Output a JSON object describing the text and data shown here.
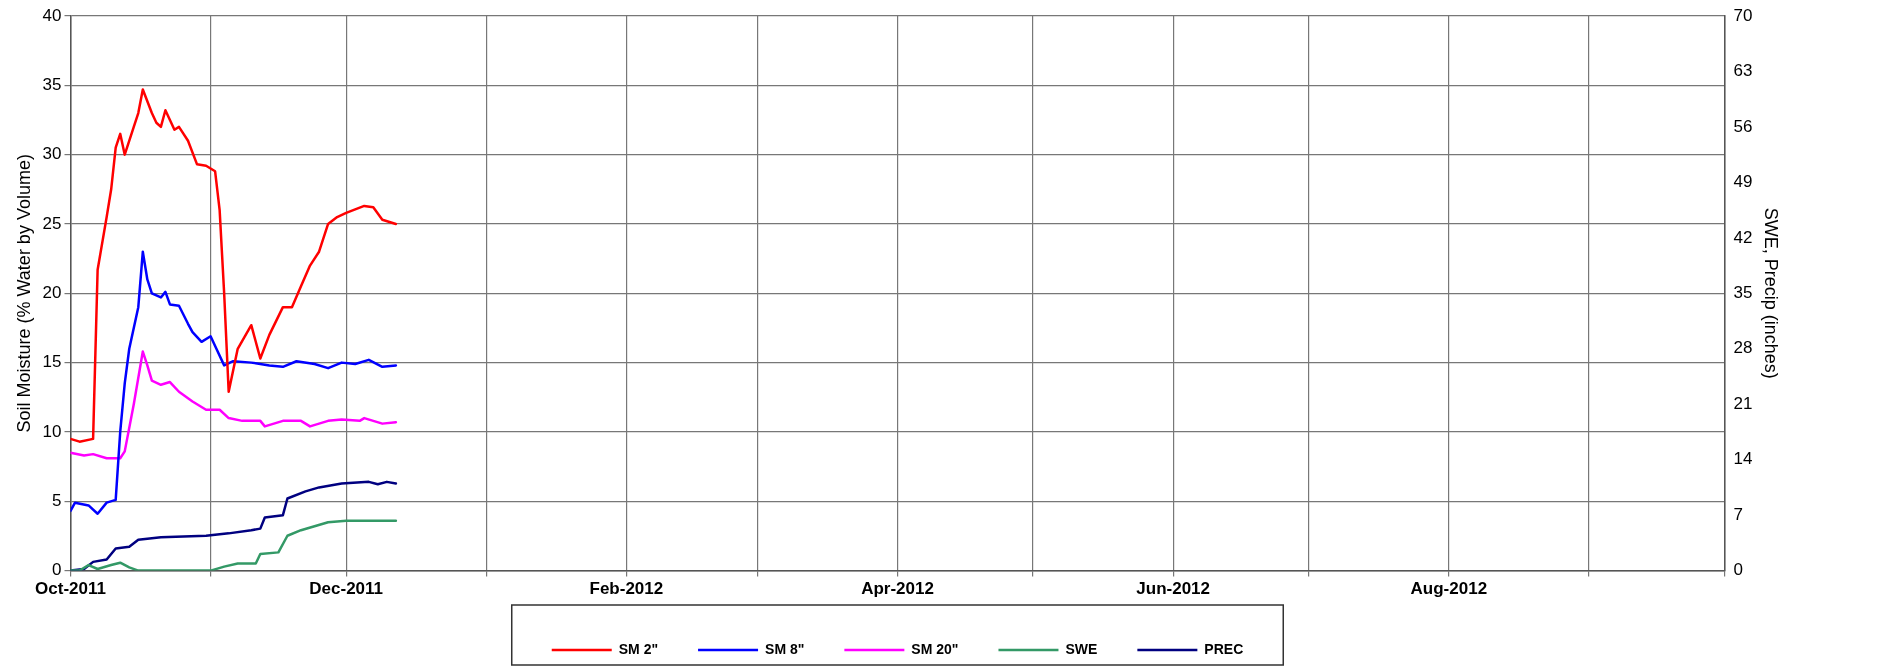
{
  "chart_data": {
    "type": "line",
    "xlabel": null,
    "ylabel": "Soil Moisture (% Water by Volume)",
    "y2label": "SWE, Precip (inches)",
    "xlim": [
      "2011-10-01",
      "2012-10-01"
    ],
    "xticks": [
      {
        "value": "2011-10-01",
        "label": "Oct-2011"
      },
      {
        "value": "2011-11-01",
        "label": null
      },
      {
        "value": "2011-12-01",
        "label": "Dec-2011"
      },
      {
        "value": "2012-01-01",
        "label": null
      },
      {
        "value": "2012-02-01",
        "label": "Feb-2012"
      },
      {
        "value": "2012-03-01",
        "label": null
      },
      {
        "value": "2012-04-01",
        "label": "Apr-2012"
      },
      {
        "value": "2012-05-01",
        "label": null
      },
      {
        "value": "2012-06-01",
        "label": "Jun-2012"
      },
      {
        "value": "2012-07-01",
        "label": null
      },
      {
        "value": "2012-08-01",
        "label": "Aug-2012"
      },
      {
        "value": "2012-09-01",
        "label": null
      },
      {
        "value": "2012-10-01",
        "label": null
      }
    ],
    "ylim": [
      0,
      40
    ],
    "yticks": [
      0,
      5,
      10,
      15,
      20,
      25,
      30,
      35,
      40
    ],
    "y2lim": [
      0,
      70
    ],
    "y2ticks": [
      0,
      7,
      14,
      21,
      28,
      35,
      42,
      49,
      56,
      63,
      70
    ],
    "grid": true,
    "legend": "bottom",
    "marker": "none",
    "line_style": "solid",
    "series": [
      {
        "name": "SM 2\"",
        "color": "#ff0000",
        "x": [
          "2011-10-01",
          "2011-10-03",
          "2011-10-06",
          "2011-10-07",
          "2011-10-09",
          "2011-10-10",
          "2011-10-11",
          "2011-10-12",
          "2011-10-13",
          "2011-10-15",
          "2011-10-16",
          "2011-10-17",
          "2011-10-19",
          "2011-10-20",
          "2011-10-21",
          "2011-10-22",
          "2011-10-24",
          "2011-10-25",
          "2011-10-27",
          "2011-10-29",
          "2011-10-31",
          "2011-11-02",
          "2011-11-03",
          "2011-11-04",
          "2011-11-05",
          "2011-11-07",
          "2011-11-10",
          "2011-11-12",
          "2011-11-14",
          "2011-11-17",
          "2011-11-19",
          "2011-11-21",
          "2011-11-23",
          "2011-11-25",
          "2011-11-27",
          "2011-11-29",
          "2011-12-01",
          "2011-12-05",
          "2011-12-07",
          "2011-12-09",
          "2011-12-12"
        ],
        "values": [
          9.5,
          9.3,
          9.5,
          21.7,
          25.5,
          27.5,
          30.5,
          31.5,
          30,
          32,
          33,
          34.7,
          33,
          32.3,
          32,
          33.2,
          31.8,
          32,
          31,
          29.3,
          29.2,
          28.8,
          26,
          20,
          12.9,
          16,
          17.7,
          15.3,
          17,
          19,
          19,
          20.5,
          22,
          23,
          25,
          25.5,
          25.8,
          26.3,
          26.2,
          25.3,
          25
        ]
      },
      {
        "name": "SM 8\"",
        "color": "#0000ff",
        "x": [
          "2011-10-01",
          "2011-10-02",
          "2011-10-05",
          "2011-10-07",
          "2011-10-09",
          "2011-10-11",
          "2011-10-12",
          "2011-10-13",
          "2011-10-14",
          "2011-10-16",
          "2011-10-17",
          "2011-10-18",
          "2011-10-19",
          "2011-10-21",
          "2011-10-22",
          "2011-10-23",
          "2011-10-25",
          "2011-10-27",
          "2011-10-28",
          "2011-10-30",
          "2011-11-01",
          "2011-11-02",
          "2011-11-04",
          "2011-11-06",
          "2011-11-10",
          "2011-11-14",
          "2011-11-17",
          "2011-11-20",
          "2011-11-24",
          "2011-11-27",
          "2011-11-30",
          "2011-12-03",
          "2011-12-06",
          "2011-12-09",
          "2011-12-12"
        ],
        "values": [
          4.3,
          4.9,
          4.7,
          4.1,
          4.9,
          5.1,
          10,
          13.5,
          16,
          19,
          23,
          21,
          20,
          19.7,
          20.1,
          19.2,
          19.1,
          17.8,
          17.2,
          16.5,
          16.9,
          16.2,
          14.8,
          15.1,
          15,
          14.8,
          14.7,
          15.1,
          14.9,
          14.6,
          15,
          14.9,
          15.2,
          14.7,
          14.8
        ]
      },
      {
        "name": "SM 20\"",
        "color": "#ff00ff",
        "x": [
          "2011-10-01",
          "2011-10-04",
          "2011-10-06",
          "2011-10-09",
          "2011-10-12",
          "2011-10-13",
          "2011-10-15",
          "2011-10-17",
          "2011-10-18",
          "2011-10-19",
          "2011-10-21",
          "2011-10-23",
          "2011-10-25",
          "2011-10-28",
          "2011-10-31",
          "2011-11-03",
          "2011-11-05",
          "2011-11-08",
          "2011-11-12",
          "2011-11-13",
          "2011-11-17",
          "2011-11-21",
          "2011-11-23",
          "2011-11-27",
          "2011-11-30",
          "2011-12-04",
          "2011-12-05",
          "2011-12-09",
          "2011-12-12"
        ],
        "values": [
          8.5,
          8.3,
          8.4,
          8.1,
          8.1,
          8.6,
          12,
          15.8,
          14.8,
          13.7,
          13.4,
          13.6,
          12.9,
          12.2,
          11.6,
          11.6,
          11,
          10.8,
          10.8,
          10.4,
          10.8,
          10.8,
          10.4,
          10.8,
          10.9,
          10.8,
          11,
          10.6,
          10.7
        ]
      },
      {
        "name": "SWE",
        "color": "#339966",
        "axis": "y2",
        "x": [
          "2011-10-01",
          "2011-10-03",
          "2011-10-05",
          "2011-10-07",
          "2011-10-10",
          "2011-10-12",
          "2011-10-14",
          "2011-10-16",
          "2011-11-01",
          "2011-11-04",
          "2011-11-07",
          "2011-11-11",
          "2011-11-12",
          "2011-11-16",
          "2011-11-18",
          "2011-11-21",
          "2011-11-24",
          "2011-11-27",
          "2011-12-01",
          "2011-12-12"
        ],
        "values": [
          0,
          0,
          0.7,
          0.2,
          0.7,
          1,
          0.4,
          0,
          0,
          0.5,
          0.9,
          0.9,
          2.1,
          2.3,
          4.4,
          5.1,
          5.6,
          6.1,
          6.3,
          6.3
        ]
      },
      {
        "name": "PREC",
        "color": "#000080",
        "axis": "y2",
        "x": [
          "2011-10-01",
          "2011-10-04",
          "2011-10-06",
          "2011-10-09",
          "2011-10-11",
          "2011-10-14",
          "2011-10-16",
          "2011-10-21",
          "2011-10-31",
          "2011-11-05",
          "2011-11-10",
          "2011-11-12",
          "2011-11-13",
          "2011-11-17",
          "2011-11-18",
          "2011-11-22",
          "2011-11-25",
          "2011-11-30",
          "2011-12-06",
          "2011-12-08",
          "2011-12-10",
          "2011-12-12"
        ],
        "values": [
          0,
          0.2,
          1.1,
          1.4,
          2.8,
          3,
          3.9,
          4.2,
          4.4,
          4.7,
          5.1,
          5.3,
          6.7,
          7,
          9.1,
          10,
          10.5,
          11,
          11.2,
          10.9,
          11.2,
          11
        ]
      }
    ]
  }
}
